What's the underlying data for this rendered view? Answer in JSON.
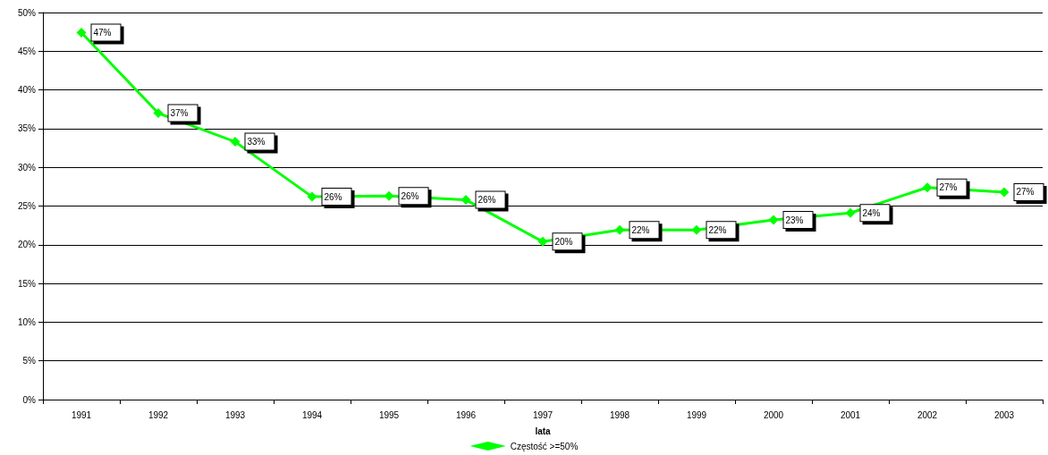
{
  "chart_data": {
    "type": "line",
    "xlabel": "lata",
    "categories": [
      "1991",
      "1992",
      "1993",
      "1994",
      "1995",
      "1996",
      "1997",
      "1998",
      "1999",
      "2000",
      "2001",
      "2002",
      "2003"
    ],
    "series": [
      {
        "name": "Częstość >=50%",
        "color": "#00ff00",
        "values": [
          47.4,
          37.0,
          33.3,
          26.2,
          26.3,
          25.8,
          20.4,
          21.9,
          21.9,
          23.2,
          24.1,
          27.4,
          26.8
        ],
        "value_labels": [
          "47%",
          "37%",
          "33%",
          "26%",
          "26%",
          "26%",
          "20%",
          "22%",
          "22%",
          "23%",
          "24%",
          "27%",
          "27%"
        ]
      }
    ],
    "ylim": [
      0,
      50
    ],
    "yticks": [
      {
        "value": 0,
        "label": "0%"
      },
      {
        "value": 5,
        "label": "5%"
      },
      {
        "value": 10,
        "label": "10%"
      },
      {
        "value": 15,
        "label": "15%"
      },
      {
        "value": 20,
        "label": "20%"
      },
      {
        "value": 25,
        "label": "25%"
      },
      {
        "value": 30,
        "label": "30%"
      },
      {
        "value": 35,
        "label": "35%"
      },
      {
        "value": 40,
        "label": "40%"
      },
      {
        "value": 45,
        "label": "45%"
      },
      {
        "value": 50,
        "label": "50%"
      }
    ],
    "grid": "y",
    "legend": "bottom",
    "marker": "diamond",
    "line_style": "solid"
  }
}
